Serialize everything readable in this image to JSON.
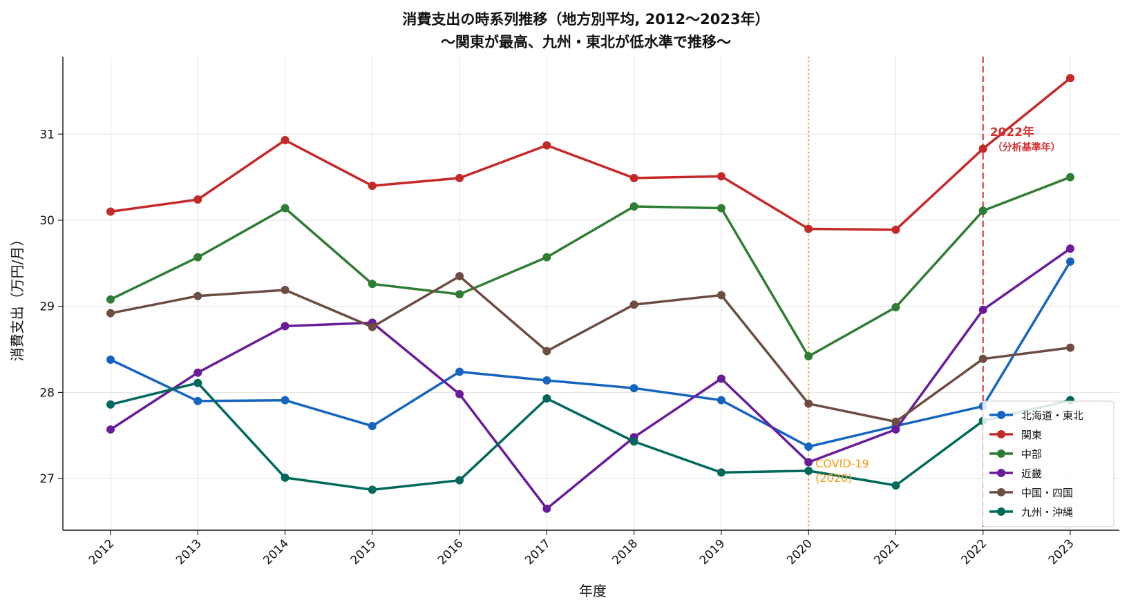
{
  "chart_data": {
    "type": "line",
    "title": "消費支出の時系列推移（地方別平均, 2012〜2023年）",
    "subtitle": "〜関東が最高、九州・東北が低水準で推移〜",
    "xlabel": "年度",
    "ylabel": "消費支出（万円/月）",
    "x": [
      "2012",
      "2013",
      "2014",
      "2015",
      "2016",
      "2017",
      "2018",
      "2019",
      "2020",
      "2021",
      "2022",
      "2023"
    ],
    "yticks": [
      "27",
      "28",
      "29",
      "30",
      "31"
    ],
    "ylim": [
      26.4,
      31.9
    ],
    "grid": true,
    "legend_position": "lower-right",
    "series": [
      {
        "name": "北海道・東北",
        "color": "#1565c0",
        "values": [
          28.38,
          27.9,
          27.91,
          27.61,
          28.24,
          28.14,
          28.05,
          27.91,
          27.37,
          27.61,
          27.84,
          29.52
        ]
      },
      {
        "name": "関東",
        "color": "#c62828",
        "values": [
          30.1,
          30.24,
          30.93,
          30.4,
          30.49,
          30.87,
          30.49,
          30.51,
          29.9,
          29.89,
          30.83,
          31.65
        ]
      },
      {
        "name": "中部",
        "color": "#2e7d32",
        "values": [
          29.08,
          29.57,
          30.14,
          29.26,
          29.14,
          29.57,
          30.16,
          30.14,
          28.42,
          28.99,
          30.11,
          30.5
        ]
      },
      {
        "name": "近畿",
        "color": "#6a1b9a",
        "values": [
          27.57,
          28.23,
          28.77,
          28.81,
          27.98,
          26.65,
          27.48,
          28.16,
          27.19,
          27.57,
          28.96,
          29.67
        ]
      },
      {
        "name": "中国・四国",
        "color": "#6d4c41",
        "values": [
          28.92,
          29.12,
          29.19,
          28.76,
          29.35,
          28.48,
          29.02,
          29.13,
          27.87,
          27.66,
          28.39,
          28.52
        ]
      },
      {
        "name": "九州・沖縄",
        "color": "#00695c",
        "values": [
          27.86,
          28.11,
          27.01,
          26.87,
          26.98,
          27.93,
          27.43,
          27.07,
          27.09,
          26.92,
          27.67,
          27.91
        ]
      }
    ],
    "annotations": [
      {
        "x": "2020",
        "style": "dotted",
        "color": "#f39c12",
        "label": "COVID-19",
        "label2": "(2020)"
      },
      {
        "x": "2022",
        "style": "dashed",
        "color": "#d32f2f",
        "label": "2022年",
        "label2": "（分析基準年）"
      }
    ]
  }
}
